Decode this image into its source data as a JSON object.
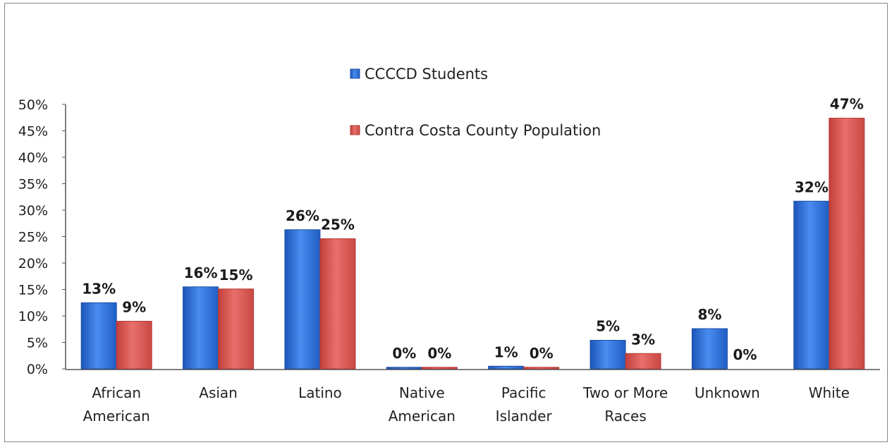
{
  "chart_data": {
    "type": "bar",
    "title": "",
    "xlabel": "",
    "ylabel": "",
    "ylim": [
      0,
      50
    ],
    "y_ticks": [
      "0%",
      "5%",
      "10%",
      "15%",
      "20%",
      "25%",
      "30%",
      "35%",
      "40%",
      "45%",
      "50%"
    ],
    "y_tick_values": [
      0,
      5,
      10,
      15,
      20,
      25,
      30,
      35,
      40,
      45,
      50
    ],
    "grid": false,
    "legend_position": "top-center",
    "categories": [
      [
        "African",
        "American"
      ],
      [
        "Asian"
      ],
      [
        "Latino"
      ],
      [
        "Native",
        "American"
      ],
      [
        "Pacific",
        "Islander"
      ],
      [
        "Two or More",
        "Races"
      ],
      [
        "Unknown"
      ],
      [
        "White"
      ]
    ],
    "series": [
      {
        "name": "CCCCD Students",
        "color": "#2e6fd6",
        "values": [
          12.5,
          15.5,
          26.3,
          0.3,
          0.5,
          5.4,
          7.6,
          31.7
        ],
        "labels": [
          "13%",
          "16%",
          "26%",
          "0%",
          "1%",
          "5%",
          "8%",
          "32%"
        ]
      },
      {
        "name": "Contra Costa County Population",
        "color": "#d9534f",
        "values": [
          9.0,
          15.1,
          24.6,
          0.3,
          0.3,
          2.9,
          0.0,
          47.4
        ],
        "labels": [
          "9%",
          "15%",
          "25%",
          "0%",
          "0%",
          "3%",
          "0%",
          "47%"
        ]
      }
    ]
  }
}
